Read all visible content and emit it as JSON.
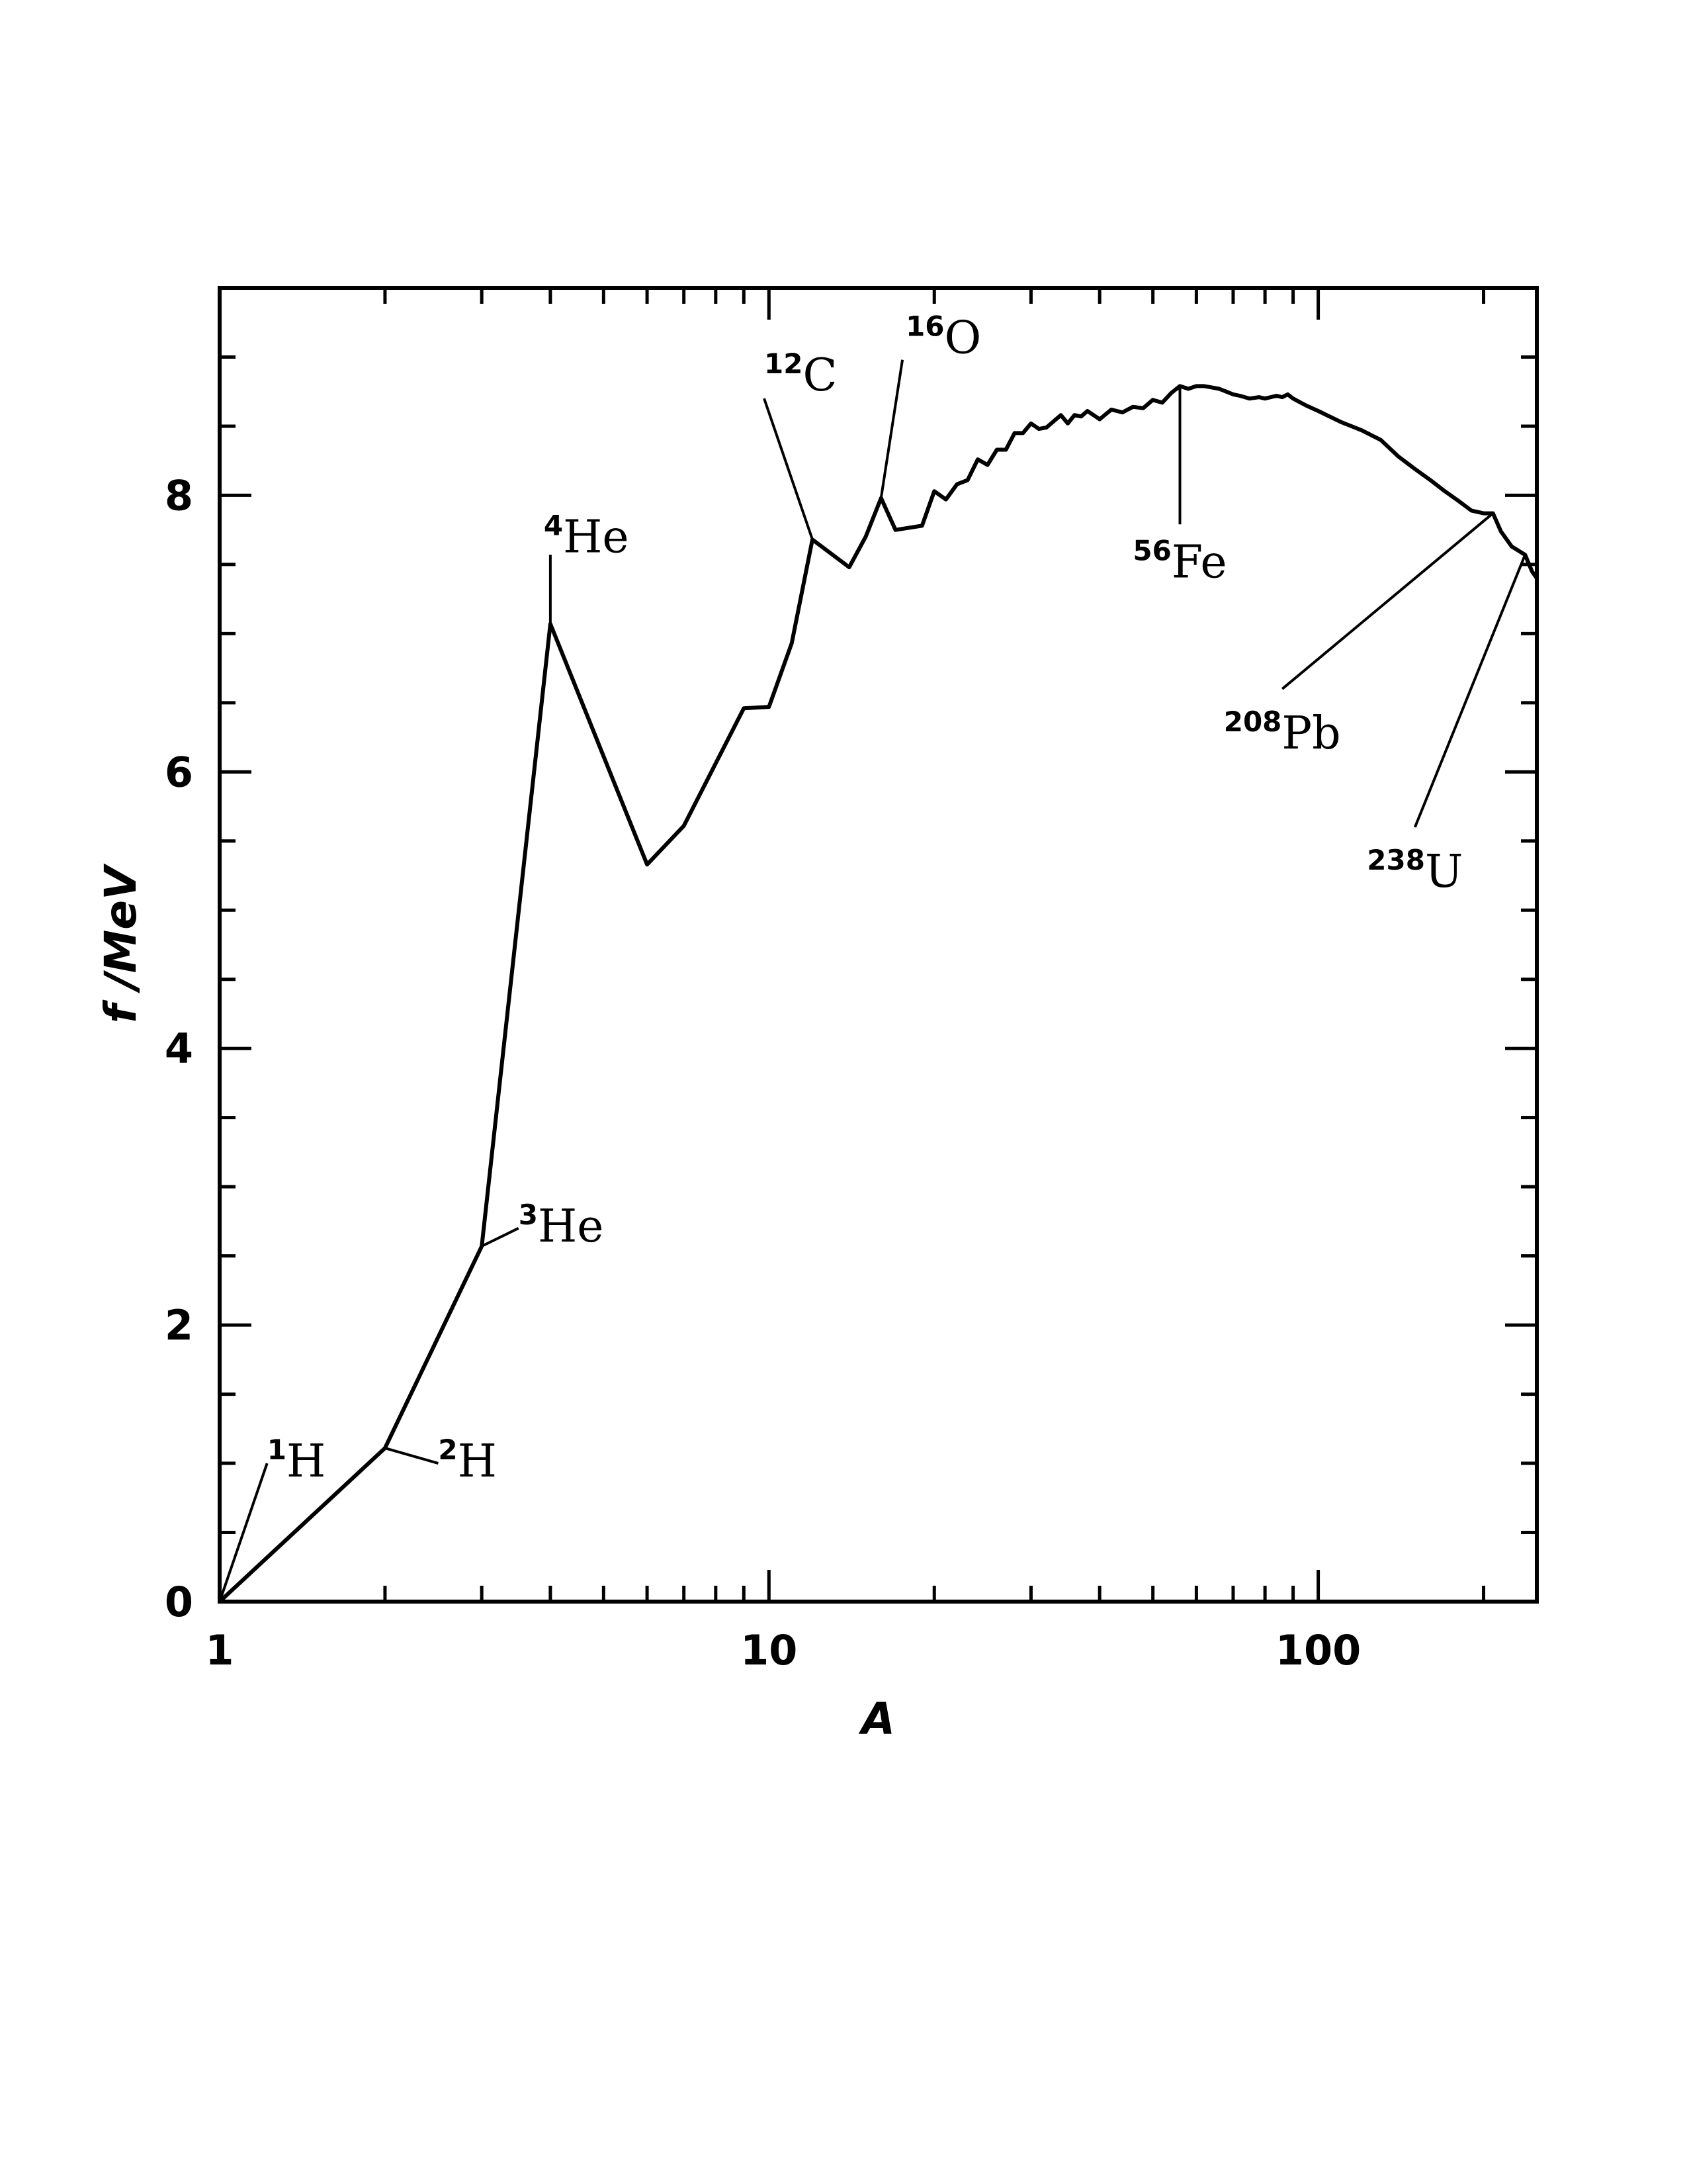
{
  "chart_data": {
    "type": "line",
    "title": "",
    "xlabel": "A",
    "ylabel": "f /MeV",
    "xscale": "log",
    "xlim": [
      1,
      250
    ],
    "ylim": [
      0,
      9.5
    ],
    "grid": false,
    "x_ticks": [
      1,
      10,
      100
    ],
    "y_ticks": [
      0,
      2,
      4,
      6,
      8
    ],
    "series": [
      {
        "name": "",
        "color": "#000000",
        "x": [
          1,
          2,
          3,
          4,
          6,
          7,
          9,
          10,
          11,
          12,
          14,
          15,
          16,
          17,
          19,
          20,
          21,
          22,
          23,
          24,
          25,
          26,
          27,
          28,
          29,
          30,
          31,
          32,
          34,
          35,
          36,
          37,
          38,
          40,
          42,
          44,
          46,
          48,
          50,
          52,
          54,
          56,
          58,
          60,
          62,
          64,
          66,
          68,
          70,
          72,
          75,
          78,
          80,
          84,
          86,
          88,
          90,
          95,
          100,
          110,
          120,
          130,
          140,
          150,
          160,
          170,
          180,
          190,
          200,
          208,
          215,
          225,
          238,
          245,
          250
        ],
        "y": [
          0,
          1.11,
          2.57,
          7.07,
          5.33,
          5.61,
          6.46,
          6.47,
          6.93,
          7.68,
          7.48,
          7.7,
          7.98,
          7.75,
          7.78,
          8.03,
          7.97,
          8.08,
          8.11,
          8.26,
          8.22,
          8.33,
          8.33,
          8.45,
          8.45,
          8.52,
          8.48,
          8.49,
          8.58,
          8.52,
          8.58,
          8.57,
          8.61,
          8.55,
          8.62,
          8.6,
          8.64,
          8.63,
          8.69,
          8.67,
          8.74,
          8.79,
          8.77,
          8.79,
          8.79,
          8.78,
          8.77,
          8.75,
          8.73,
          8.72,
          8.7,
          8.71,
          8.7,
          8.72,
          8.71,
          8.73,
          8.7,
          8.65,
          8.61,
          8.53,
          8.47,
          8.4,
          8.28,
          8.19,
          8.11,
          8.03,
          7.96,
          7.89,
          7.87,
          7.87,
          7.74,
          7.63,
          7.57,
          7.45,
          7.4
        ]
      }
    ],
    "annotations": [
      {
        "mass": "1",
        "symbol": "H",
        "x": 1,
        "y": 0,
        "label_x": 1.22,
        "label_y": 1.0
      },
      {
        "mass": "2",
        "symbol": "H",
        "x": 2,
        "y": 1.11,
        "label_x": 2.5,
        "label_y": 1.0
      },
      {
        "mass": "3",
        "symbol": "He",
        "x": 3,
        "y": 2.57,
        "label_x": 3.5,
        "label_y": 2.7
      },
      {
        "mass": "4",
        "symbol": "He",
        "x": 4,
        "y": 7.07,
        "label_x": 4,
        "label_y": 7.57
      },
      {
        "mass": "12",
        "symbol": "C",
        "x": 12,
        "y": 7.68,
        "label_x": 9.8,
        "label_y": 8.7
      },
      {
        "mass": "16",
        "symbol": "O",
        "x": 16,
        "y": 7.98,
        "label_x": 17.5,
        "label_y": 8.98
      },
      {
        "mass": "56",
        "symbol": "Fe",
        "x": 56,
        "y": 8.79,
        "label_x": 56,
        "label_y": 7.79
      },
      {
        "mass": "208",
        "symbol": "Pb",
        "x": 208,
        "y": 7.87,
        "label_x": 86,
        "label_y": 6.6
      },
      {
        "mass": "238",
        "symbol": "U",
        "x": 238,
        "y": 7.57,
        "label_x": 150,
        "label_y": 5.6
      }
    ]
  }
}
